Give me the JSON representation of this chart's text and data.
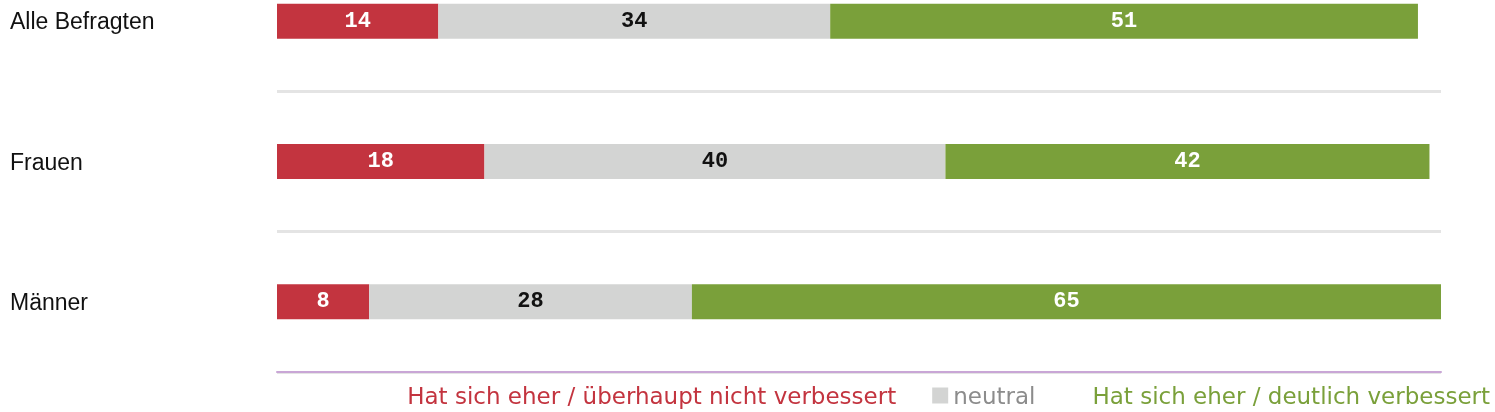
{
  "chart_data": {
    "type": "bar",
    "orientation": "horizontal",
    "stacked": true,
    "categories": [
      "Alle Befragten",
      "Frauen",
      "Männer"
    ],
    "series": [
      {
        "name": "Hat sich eher / überhaupt nicht verbessert",
        "color": "#c3343f",
        "values": [
          14,
          18,
          8
        ]
      },
      {
        "name": "neutral",
        "color": "#d3d4d3",
        "values": [
          34,
          40,
          28
        ]
      },
      {
        "name": "Hat sich eher / deutlich verbessert",
        "color": "#7aa03a",
        "values": [
          51,
          42,
          65
        ]
      }
    ],
    "data_labels": true,
    "grid": "y",
    "legend": "bottom right"
  }
}
